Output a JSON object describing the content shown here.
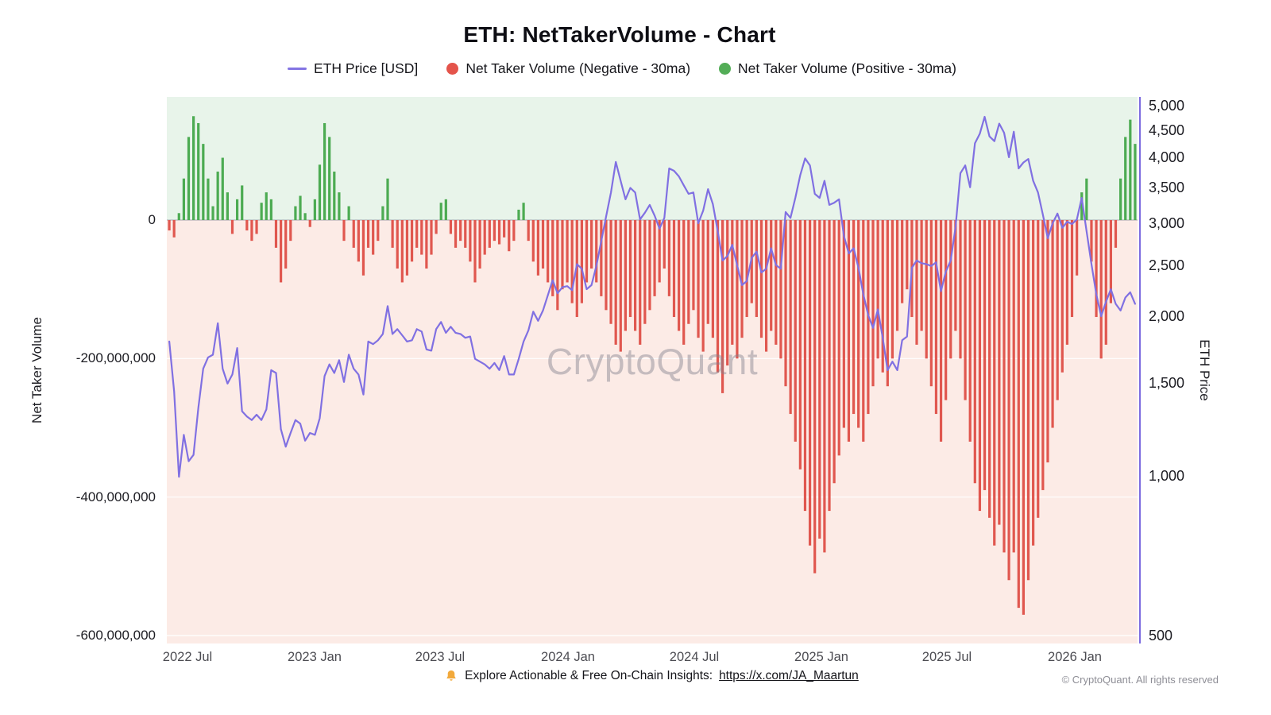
{
  "chart_data": {
    "type": "mixed",
    "title": "ETH: NetTakerVolume - Chart",
    "watermark": "CryptoQuant",
    "legend_position": "top",
    "grid": "subtle-horizontal",
    "bg_positive": "#e8f4ea",
    "bg_negative": "#fcebe6",
    "x_start": "2022-06-05",
    "x_step_days": 7,
    "x_ticks": [
      {
        "label": "2022 Jul",
        "date": "2022-07-01"
      },
      {
        "label": "2023 Jan",
        "date": "2023-01-01"
      },
      {
        "label": "2023 Jul",
        "date": "2023-07-01"
      },
      {
        "label": "2024 Jan",
        "date": "2024-01-01"
      },
      {
        "label": "2024 Jul",
        "date": "2024-07-01"
      },
      {
        "label": "2025 Jan",
        "date": "2025-01-01"
      },
      {
        "label": "2025 Jul",
        "date": "2025-07-01"
      },
      {
        "label": "2026 Jan",
        "date": "2026-01-01"
      }
    ],
    "left_axis": {
      "label": "Net Taker Volume",
      "scale": "linear",
      "range": [
        -611000000,
        178000000
      ],
      "zero_line_color": "#a6a6ad",
      "ticks": [
        {
          "value": 0,
          "label": "0"
        },
        {
          "value": -200000000,
          "label": "-200,000,000"
        },
        {
          "value": -400000000,
          "label": "-400,000,000"
        },
        {
          "value": -600000000,
          "label": "-600,000,000"
        }
      ]
    },
    "right_axis": {
      "label": "ETH Price",
      "scale": "log",
      "range": [
        500,
        5000
      ],
      "axis_line_color": "#7c6ce0",
      "ticks": [
        {
          "value": 5000,
          "label": "5,000"
        },
        {
          "value": 4500,
          "label": "4,500"
        },
        {
          "value": 4000,
          "label": "4,000"
        },
        {
          "value": 3500,
          "label": "3,500"
        },
        {
          "value": 3000,
          "label": "3,000"
        },
        {
          "value": 2500,
          "label": "2,500"
        },
        {
          "value": 2000,
          "label": "2,000"
        },
        {
          "value": 1500,
          "label": "1,500"
        },
        {
          "value": 1000,
          "label": "1,000"
        },
        {
          "value": 500,
          "label": "500"
        }
      ]
    },
    "series": [
      {
        "name": "ETH Price [USD]",
        "type": "line",
        "axis": "right",
        "color": "#8070e2",
        "values": [
          1800,
          1450,
          1000,
          1200,
          1070,
          1100,
          1350,
          1600,
          1680,
          1700,
          1950,
          1600,
          1500,
          1560,
          1750,
          1330,
          1300,
          1280,
          1310,
          1280,
          1340,
          1590,
          1570,
          1230,
          1140,
          1210,
          1280,
          1260,
          1170,
          1210,
          1200,
          1290,
          1550,
          1630,
          1570,
          1660,
          1510,
          1700,
          1600,
          1560,
          1430,
          1800,
          1780,
          1810,
          1860,
          2100,
          1860,
          1900,
          1850,
          1800,
          1810,
          1900,
          1880,
          1740,
          1730,
          1900,
          1960,
          1870,
          1920,
          1870,
          1860,
          1830,
          1840,
          1670,
          1650,
          1630,
          1600,
          1640,
          1590,
          1690,
          1560,
          1560,
          1670,
          1800,
          1890,
          2050,
          1970,
          2060,
          2200,
          2350,
          2220,
          2280,
          2290,
          2250,
          2520,
          2470,
          2260,
          2300,
          2500,
          2780,
          3100,
          3440,
          3930,
          3620,
          3340,
          3510,
          3440,
          3060,
          3150,
          3260,
          3110,
          2940,
          3080,
          3820,
          3780,
          3690,
          3550,
          3420,
          3440,
          3010,
          3180,
          3490,
          3270,
          2910,
          2560,
          2610,
          2740,
          2510,
          2300,
          2340,
          2590,
          2660,
          2430,
          2470,
          2700,
          2510,
          2470,
          3160,
          3080,
          3360,
          3710,
          3990,
          3870,
          3420,
          3360,
          3620,
          3260,
          3290,
          3340,
          2850,
          2640,
          2700,
          2480,
          2210,
          2020,
          1910,
          2070,
          1830,
          1590,
          1650,
          1590,
          1810,
          1840,
          2480,
          2560,
          2530,
          2520,
          2500,
          2540,
          2240,
          2440,
          2560,
          2960,
          3740,
          3870,
          3520,
          4260,
          4440,
          4780,
          4390,
          4300,
          4640,
          4460,
          4010,
          4480,
          3820,
          3920,
          3980,
          3620,
          3440,
          3120,
          2820,
          3010,
          3140,
          2950,
          3030,
          3000,
          3060,
          3360,
          2910,
          2520,
          2210,
          2010,
          2140,
          2260,
          2120,
          2060,
          2180,
          2230,
          2120
        ]
      },
      {
        "name": "Net Taker Volume (30ma)",
        "type": "bar",
        "axis": "left",
        "unit": "millions_usd",
        "positive_color": "#4cab52",
        "negative_color": "#e0574f",
        "values_millions": [
          -15,
          -25,
          10,
          60,
          120,
          150,
          140,
          110,
          60,
          20,
          70,
          90,
          40,
          -20,
          30,
          50,
          -15,
          -30,
          -20,
          25,
          40,
          30,
          -40,
          -90,
          -70,
          -30,
          20,
          35,
          10,
          -10,
          30,
          80,
          140,
          120,
          70,
          40,
          -30,
          20,
          -40,
          -60,
          -80,
          -40,
          -50,
          -30,
          20,
          60,
          -40,
          -70,
          -90,
          -80,
          -60,
          -40,
          -50,
          -70,
          -50,
          -20,
          25,
          30,
          -20,
          -40,
          -30,
          -40,
          -60,
          -90,
          -70,
          -50,
          -40,
          -30,
          -35,
          -25,
          -45,
          -30,
          15,
          25,
          -30,
          -60,
          -80,
          -70,
          -90,
          -110,
          -130,
          -100,
          -90,
          -120,
          -140,
          -120,
          -90,
          -70,
          -90,
          -110,
          -130,
          -150,
          -180,
          -190,
          -160,
          -140,
          -160,
          -180,
          -150,
          -130,
          -110,
          -90,
          -70,
          -110,
          -140,
          -160,
          -180,
          -150,
          -130,
          -170,
          -190,
          -150,
          -170,
          -220,
          -250,
          -210,
          -180,
          -200,
          -170,
          -140,
          -120,
          -140,
          -170,
          -190,
          -160,
          -180,
          -200,
          -240,
          -280,
          -320,
          -360,
          -420,
          -470,
          -510,
          -460,
          -480,
          -420,
          -380,
          -340,
          -300,
          -320,
          -280,
          -300,
          -320,
          -280,
          -240,
          -200,
          -220,
          -240,
          -200,
          -160,
          -120,
          -100,
          -140,
          -180,
          -160,
          -200,
          -240,
          -280,
          -320,
          -260,
          -200,
          -160,
          -200,
          -260,
          -320,
          -380,
          -420,
          -390,
          -430,
          -470,
          -440,
          -480,
          -520,
          -480,
          -560,
          -570,
          -520,
          -470,
          -430,
          -390,
          -350,
          -300,
          -260,
          -220,
          -180,
          -140,
          -80,
          40,
          60,
          -60,
          -140,
          -200,
          -180,
          -120,
          -40,
          60,
          120,
          145,
          110
        ]
      }
    ]
  },
  "legend": [
    {
      "label": "ETH Price [USD]",
      "swatch": "line",
      "color": "#8374e3"
    },
    {
      "label": "Net Taker Volume (Negative - 30ma)",
      "swatch": "dot",
      "color": "#e4544b"
    },
    {
      "label": "Net Taker Volume (Positive - 30ma)",
      "swatch": "dot",
      "color": "#53ad57"
    }
  ],
  "footer": {
    "text": "Explore Actionable & Free On-Chain Insights:",
    "link": "https://x.com/JA_Maartun"
  },
  "copyright": "© CryptoQuant. All rights reserved"
}
